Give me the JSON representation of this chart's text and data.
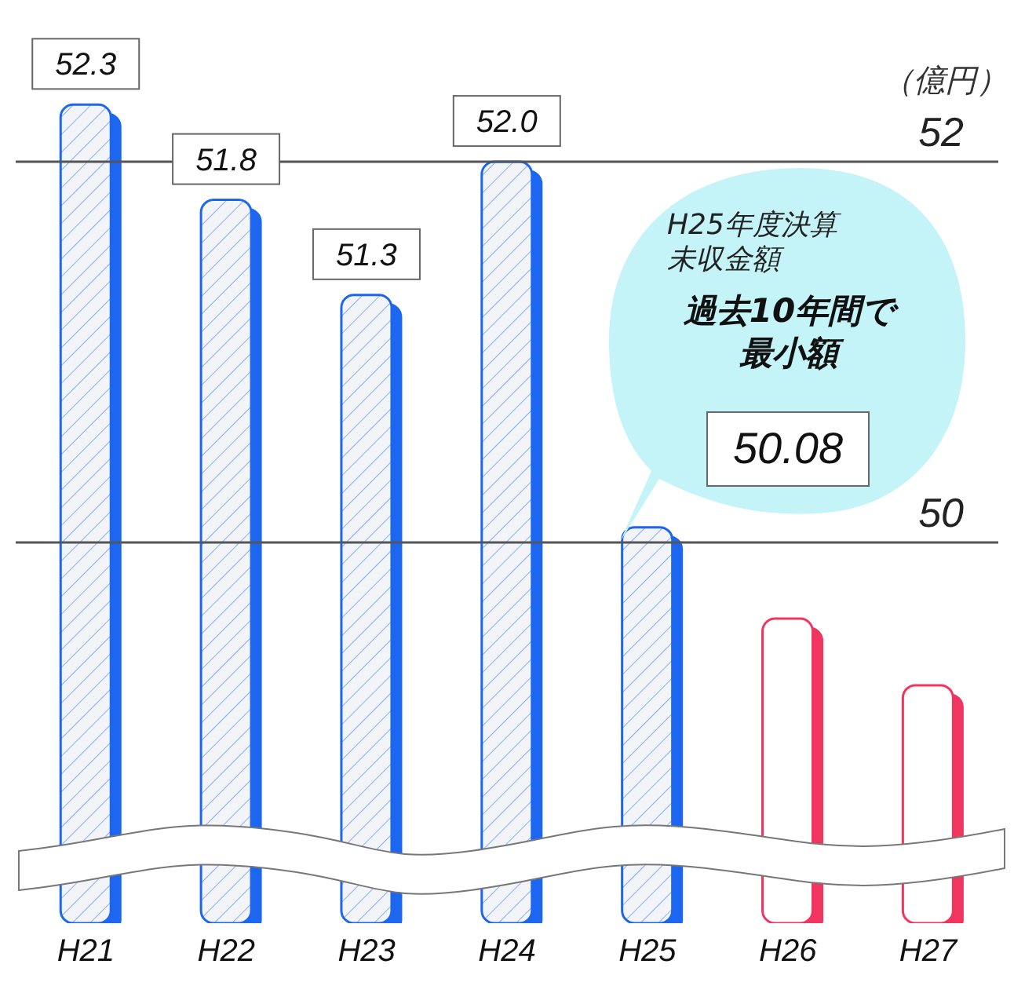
{
  "chart_data": {
    "type": "bar",
    "ylabel": "（億円）",
    "categories": [
      "H21",
      "H22",
      "H23",
      "H24",
      "H25",
      "H26",
      "H27"
    ],
    "values": [
      52.3,
      51.8,
      51.3,
      52.0,
      50.08,
      49.6,
      49.25
    ],
    "colors": [
      "#1a66f0",
      "#1a66f0",
      "#1a66f0",
      "#1a66f0",
      "#1a66f0",
      "#f0365e",
      "#f0365e"
    ],
    "value_labels": [
      "52.3",
      "51.8",
      "51.3",
      "52.0",
      null,
      null,
      null
    ],
    "ylim": [
      48,
      52.85
    ],
    "yticks": [
      50,
      52
    ],
    "grid": "y",
    "annotations": [
      "H25年度決算",
      "未収金額",
      "過去10年間で",
      "最小額",
      "50.08"
    ]
  }
}
